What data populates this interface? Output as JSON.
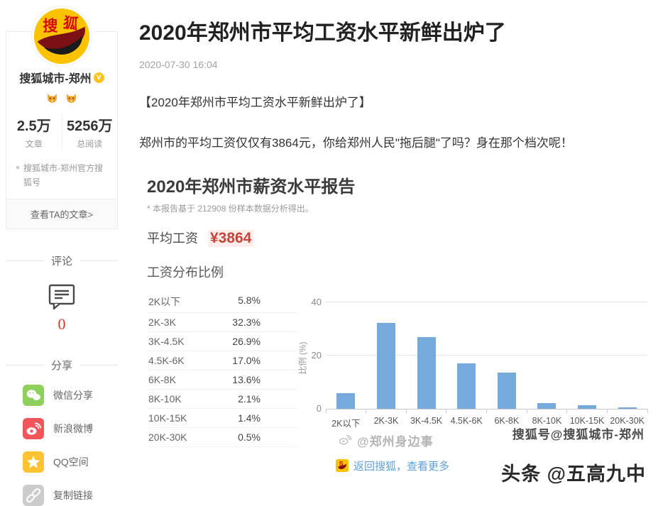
{
  "colors": {
    "bar": "#76aadd",
    "accent_red": "#c5443c",
    "link_blue": "#5e9fdc",
    "brand_yellow": "#fbc200"
  },
  "sidebar": {
    "logo_text": "搜狐",
    "account": {
      "name": "搜狐城市-郑州",
      "verified_badge": "V"
    },
    "stats": [
      {
        "value": "2.5万",
        "label": "文章"
      },
      {
        "value": "5256万",
        "label": "总阅读"
      }
    ],
    "description": "搜狐城市-郑州官方搜狐号",
    "view_articles_label": "查看TA的文章>",
    "comments": {
      "heading": "评论",
      "count": "0"
    },
    "share": {
      "heading": "分享",
      "items": [
        {
          "icon": "wechat-icon",
          "label": "微信分享",
          "color": "#8fd05c"
        },
        {
          "icon": "weibo-icon",
          "label": "新浪微博",
          "color": "#f2565b"
        },
        {
          "icon": "qzone-icon",
          "label": "QQ空间",
          "color": "#fdc331"
        },
        {
          "icon": "copylink-icon",
          "label": "复制链接",
          "color": "#cccccc"
        }
      ]
    }
  },
  "article": {
    "title": "2020年郑州市平均工资水平新鲜出炉了",
    "date": "2020-07-30 16:04",
    "paragraph_1": "【2020年郑州市平均工资水平新鲜出炉了】",
    "paragraph_2": "郑州市的平均工资仅仅有3864元，你给郑州人民\"拖后腿\"了吗？身在那个档次呢！",
    "footer_link": "返回搜狐，查看更多"
  },
  "report": {
    "title": "2020年郑州市薪资水平报告",
    "note": "* 本报告基于 212908 份样本数据分析得出。",
    "avg_label": "平均工资",
    "avg_value": "¥3864",
    "dist_heading": "工资分布比例",
    "table_rows": [
      {
        "range": "2K以下",
        "pct": "5.8%"
      },
      {
        "range": "2K-3K",
        "pct": "32.3%"
      },
      {
        "range": "3K-4.5K",
        "pct": "26.9%"
      },
      {
        "range": "4.5K-6K",
        "pct": "17.0%"
      },
      {
        "range": "6K-8K",
        "pct": "13.6%"
      },
      {
        "range": "8K-10K",
        "pct": "2.1%"
      },
      {
        "range": "10K-15K",
        "pct": "1.4%"
      },
      {
        "range": "20K-30K",
        "pct": "0.5%"
      }
    ],
    "watermark_weibo": "@郑州身边事",
    "watermark_sohu": "搜狐号@搜狐城市-郑州"
  },
  "chart_data": {
    "type": "bar",
    "title": "工资分布比例",
    "categories": [
      "2K以下",
      "2K-3K",
      "3K-4.5K",
      "4.5K-6K",
      "6K-8K",
      "8K-10K",
      "10K-15K",
      "20K-30K"
    ],
    "values": [
      5.8,
      32.3,
      26.9,
      17.0,
      13.6,
      2.1,
      1.4,
      0.5
    ],
    "xlabel": "",
    "ylabel": "比例 (%)",
    "ylim": [
      0,
      40
    ],
    "yticks": [
      0,
      20,
      40
    ],
    "bar_color": "#76aadd",
    "grid": true,
    "legend": false
  },
  "page_watermark": "头条 @五高九中"
}
